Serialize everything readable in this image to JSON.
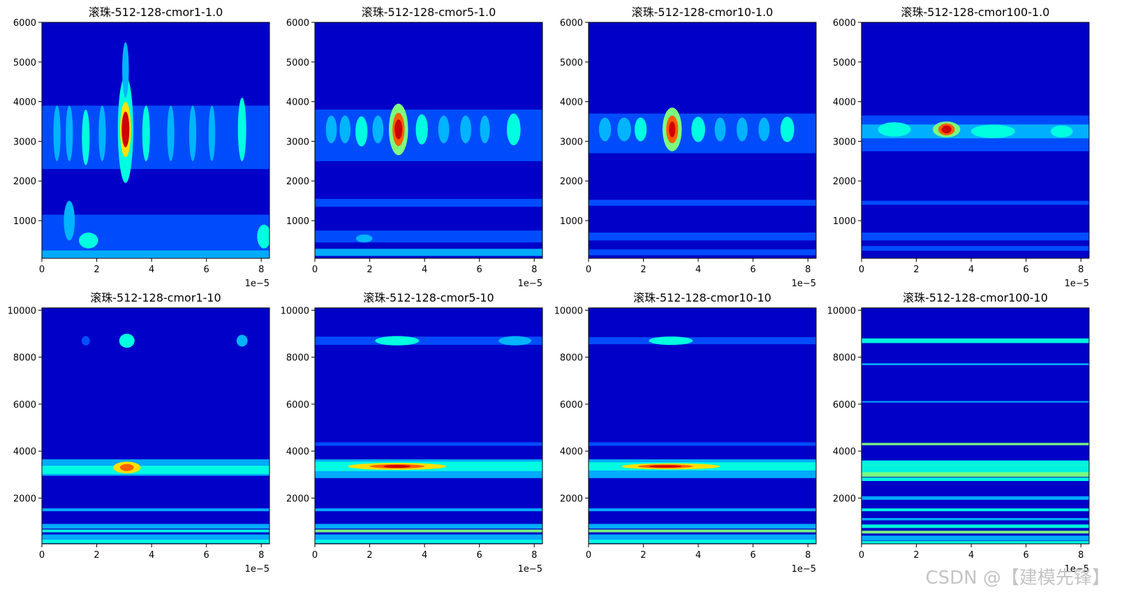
{
  "palette": {
    "background": "#0000c8",
    "levels": [
      "#0000c8",
      "#0050ff",
      "#00b4ff",
      "#00ffe0",
      "#7dff7d",
      "#ffe000",
      "#ff6000",
      "#d00000"
    ]
  },
  "watermark": "CSDN @【建模先锋】",
  "chart_data": [
    {
      "type": "heatmap",
      "title": "滚珠-512-128-cmor1-1.0",
      "x_ticks": [
        "0",
        "2",
        "4",
        "6",
        "8"
      ],
      "x_range": [
        0,
        8.3
      ],
      "x_offset_text": "1e−5",
      "y_ticks": [
        "1000",
        "2000",
        "3000",
        "4000",
        "5000",
        "6000"
      ],
      "y_range": [
        50,
        6000
      ],
      "blobs": [
        {
          "x": 3.05,
          "y": 3300,
          "rx": 0.28,
          "ry": 1350,
          "level": 3
        },
        {
          "x": 3.05,
          "y": 3300,
          "rx": 0.2,
          "ry": 700,
          "level": 5
        },
        {
          "x": 3.05,
          "y": 3300,
          "rx": 0.14,
          "ry": 450,
          "level": 7
        },
        {
          "x": 3.05,
          "y": 4800,
          "rx": 0.12,
          "ry": 700,
          "level": 2
        },
        {
          "x": 0.55,
          "y": 3200,
          "rx": 0.13,
          "ry": 700,
          "level": 2
        },
        {
          "x": 1.0,
          "y": 3200,
          "rx": 0.13,
          "ry": 700,
          "level": 2
        },
        {
          "x": 1.6,
          "y": 3100,
          "rx": 0.14,
          "ry": 700,
          "level": 3
        },
        {
          "x": 2.2,
          "y": 3200,
          "rx": 0.13,
          "ry": 700,
          "level": 2
        },
        {
          "x": 3.8,
          "y": 3200,
          "rx": 0.14,
          "ry": 700,
          "level": 3
        },
        {
          "x": 4.7,
          "y": 3200,
          "rx": 0.13,
          "ry": 700,
          "level": 2
        },
        {
          "x": 5.5,
          "y": 3200,
          "rx": 0.13,
          "ry": 700,
          "level": 2
        },
        {
          "x": 6.2,
          "y": 3200,
          "rx": 0.12,
          "ry": 700,
          "level": 2
        },
        {
          "x": 7.3,
          "y": 3300,
          "rx": 0.15,
          "ry": 800,
          "level": 3
        },
        {
          "x": 1.7,
          "y": 500,
          "rx": 0.35,
          "ry": 200,
          "level": 3
        },
        {
          "x": 8.1,
          "y": 600,
          "rx": 0.25,
          "ry": 300,
          "level": 3
        },
        {
          "x": 1.0,
          "y": 1000,
          "rx": 0.2,
          "ry": 500,
          "level": 2
        }
      ],
      "bands": [
        {
          "y": 3100,
          "h": 1600,
          "level": 1
        },
        {
          "y": 700,
          "h": 900,
          "level": 1
        },
        {
          "y": 150,
          "h": 200,
          "level": 2
        }
      ]
    },
    {
      "type": "heatmap",
      "title": "滚珠-512-128-cmor5-1.0",
      "x_ticks": [
        "0",
        "2",
        "4",
        "6",
        "8"
      ],
      "x_range": [
        0,
        8.3
      ],
      "x_offset_text": "1e−5",
      "y_ticks": [
        "1000",
        "2000",
        "3000",
        "4000",
        "5000",
        "6000"
      ],
      "y_range": [
        50,
        6000
      ],
      "blobs": [
        {
          "x": 3.05,
          "y": 3300,
          "rx": 0.35,
          "ry": 650,
          "level": 4
        },
        {
          "x": 3.05,
          "y": 3300,
          "rx": 0.22,
          "ry": 420,
          "level": 6
        },
        {
          "x": 3.05,
          "y": 3300,
          "rx": 0.14,
          "ry": 250,
          "level": 7
        },
        {
          "x": 0.6,
          "y": 3300,
          "rx": 0.2,
          "ry": 350,
          "level": 2
        },
        {
          "x": 1.1,
          "y": 3300,
          "rx": 0.2,
          "ry": 350,
          "level": 2
        },
        {
          "x": 1.7,
          "y": 3250,
          "rx": 0.22,
          "ry": 380,
          "level": 3
        },
        {
          "x": 2.3,
          "y": 3300,
          "rx": 0.2,
          "ry": 350,
          "level": 2
        },
        {
          "x": 3.9,
          "y": 3300,
          "rx": 0.22,
          "ry": 380,
          "level": 3
        },
        {
          "x": 4.7,
          "y": 3300,
          "rx": 0.2,
          "ry": 350,
          "level": 2
        },
        {
          "x": 5.5,
          "y": 3300,
          "rx": 0.2,
          "ry": 350,
          "level": 2
        },
        {
          "x": 6.2,
          "y": 3300,
          "rx": 0.18,
          "ry": 350,
          "level": 2
        },
        {
          "x": 7.25,
          "y": 3300,
          "rx": 0.25,
          "ry": 400,
          "level": 3
        },
        {
          "x": 1.8,
          "y": 550,
          "rx": 0.3,
          "ry": 100,
          "level": 2
        }
      ],
      "bands": [
        {
          "y": 3150,
          "h": 1300,
          "level": 1
        },
        {
          "y": 1450,
          "h": 200,
          "level": 1
        },
        {
          "y": 600,
          "h": 300,
          "level": 1
        },
        {
          "y": 200,
          "h": 180,
          "level": 2
        }
      ]
    },
    {
      "type": "heatmap",
      "title": "滚珠-512-128-cmor10-1.0",
      "x_ticks": [
        "0",
        "2",
        "4",
        "6",
        "8"
      ],
      "x_range": [
        0,
        8.3
      ],
      "x_offset_text": "1e−5",
      "y_ticks": [
        "1000",
        "2000",
        "3000",
        "4000",
        "5000",
        "6000"
      ],
      "y_range": [
        50,
        6000
      ],
      "blobs": [
        {
          "x": 3.05,
          "y": 3300,
          "rx": 0.35,
          "ry": 550,
          "level": 4
        },
        {
          "x": 3.05,
          "y": 3300,
          "rx": 0.22,
          "ry": 350,
          "level": 6
        },
        {
          "x": 3.05,
          "y": 3300,
          "rx": 0.12,
          "ry": 200,
          "level": 7
        },
        {
          "x": 0.6,
          "y": 3300,
          "rx": 0.22,
          "ry": 300,
          "level": 2
        },
        {
          "x": 1.3,
          "y": 3300,
          "rx": 0.25,
          "ry": 300,
          "level": 2
        },
        {
          "x": 1.9,
          "y": 3300,
          "rx": 0.22,
          "ry": 300,
          "level": 3
        },
        {
          "x": 4.0,
          "y": 3300,
          "rx": 0.25,
          "ry": 320,
          "level": 3
        },
        {
          "x": 4.8,
          "y": 3300,
          "rx": 0.2,
          "ry": 300,
          "level": 2
        },
        {
          "x": 5.6,
          "y": 3300,
          "rx": 0.2,
          "ry": 300,
          "level": 2
        },
        {
          "x": 6.4,
          "y": 3300,
          "rx": 0.2,
          "ry": 300,
          "level": 2
        },
        {
          "x": 7.25,
          "y": 3300,
          "rx": 0.25,
          "ry": 320,
          "level": 3
        }
      ],
      "bands": [
        {
          "y": 3200,
          "h": 1000,
          "level": 1
        },
        {
          "y": 1450,
          "h": 150,
          "level": 1
        },
        {
          "y": 600,
          "h": 200,
          "level": 1
        },
        {
          "y": 200,
          "h": 150,
          "level": 1
        }
      ]
    },
    {
      "type": "heatmap",
      "title": "滚珠-512-128-cmor100-1.0",
      "x_ticks": [
        "0",
        "2",
        "4",
        "6",
        "8"
      ],
      "x_range": [
        0,
        8.3
      ],
      "x_offset_text": "1e−5",
      "y_ticks": [
        "1000",
        "2000",
        "3000",
        "4000",
        "5000",
        "6000"
      ],
      "y_range": [
        50,
        6000
      ],
      "blobs": [
        {
          "x": 3.1,
          "y": 3300,
          "rx": 0.5,
          "ry": 200,
          "level": 4
        },
        {
          "x": 3.1,
          "y": 3300,
          "rx": 0.3,
          "ry": 150,
          "level": 6
        },
        {
          "x": 3.1,
          "y": 3300,
          "rx": 0.18,
          "ry": 100,
          "level": 7
        },
        {
          "x": 1.2,
          "y": 3300,
          "rx": 0.6,
          "ry": 180,
          "level": 3
        },
        {
          "x": 4.8,
          "y": 3250,
          "rx": 0.8,
          "ry": 170,
          "level": 3
        },
        {
          "x": 7.3,
          "y": 3250,
          "rx": 0.4,
          "ry": 150,
          "level": 3
        }
      ],
      "bands": [
        {
          "y": 3200,
          "h": 900,
          "level": 1
        },
        {
          "y": 3250,
          "h": 350,
          "level": 2
        },
        {
          "y": 1450,
          "h": 100,
          "level": 1
        },
        {
          "y": 600,
          "h": 200,
          "level": 1
        },
        {
          "y": 300,
          "h": 120,
          "level": 1
        }
      ]
    },
    {
      "type": "heatmap",
      "title": "滚珠-512-128-cmor1-10",
      "x_ticks": [
        "0",
        "2",
        "4",
        "6",
        "8"
      ],
      "x_range": [
        0,
        8.3
      ],
      "x_offset_text": "1e−5",
      "y_ticks": [
        "2000",
        "4000",
        "6000",
        "8000",
        "10000"
      ],
      "y_range": [
        50,
        10100
      ],
      "blobs": [
        {
          "x": 3.1,
          "y": 3300,
          "rx": 0.5,
          "ry": 250,
          "level": 5
        },
        {
          "x": 3.1,
          "y": 3300,
          "rx": 0.25,
          "ry": 150,
          "level": 6
        },
        {
          "x": 3.1,
          "y": 8700,
          "rx": 0.28,
          "ry": 300,
          "level": 3
        },
        {
          "x": 7.3,
          "y": 8700,
          "rx": 0.2,
          "ry": 250,
          "level": 2
        },
        {
          "x": 1.6,
          "y": 8700,
          "rx": 0.15,
          "ry": 200,
          "level": 1
        }
      ],
      "bands": [
        {
          "y": 3300,
          "h": 700,
          "level": 2
        },
        {
          "y": 3200,
          "h": 350,
          "level": 3
        },
        {
          "y": 1500,
          "h": 120,
          "level": 2
        },
        {
          "y": 800,
          "h": 200,
          "level": 2
        },
        {
          "y": 600,
          "h": 120,
          "level": 3
        },
        {
          "y": 300,
          "h": 300,
          "level": 2
        },
        {
          "y": 150,
          "h": 150,
          "level": 3
        }
      ]
    },
    {
      "type": "heatmap",
      "title": "滚珠-512-128-cmor5-10",
      "x_ticks": [
        "0",
        "2",
        "4",
        "6",
        "8"
      ],
      "x_range": [
        0,
        8.3
      ],
      "x_offset_text": "1e−5",
      "y_ticks": [
        "2000",
        "4000",
        "6000",
        "8000",
        "10000"
      ],
      "y_range": [
        50,
        10100
      ],
      "blobs": [
        {
          "x": 3.0,
          "y": 3350,
          "rx": 1.8,
          "ry": 150,
          "level": 5
        },
        {
          "x": 3.0,
          "y": 3350,
          "rx": 1.0,
          "ry": 90,
          "level": 6
        },
        {
          "x": 3.0,
          "y": 3350,
          "rx": 0.5,
          "ry": 60,
          "level": 7
        },
        {
          "x": 3.0,
          "y": 8700,
          "rx": 0.8,
          "ry": 200,
          "level": 3
        },
        {
          "x": 7.3,
          "y": 8700,
          "rx": 0.6,
          "ry": 200,
          "level": 2
        }
      ],
      "bands": [
        {
          "y": 3250,
          "h": 800,
          "level": 2
        },
        {
          "y": 3350,
          "h": 400,
          "level": 3
        },
        {
          "y": 8700,
          "h": 350,
          "level": 1
        },
        {
          "y": 4300,
          "h": 150,
          "level": 1
        },
        {
          "y": 1500,
          "h": 120,
          "level": 2
        },
        {
          "y": 800,
          "h": 200,
          "level": 2
        },
        {
          "y": 600,
          "h": 120,
          "level": 4
        },
        {
          "y": 300,
          "h": 300,
          "level": 2
        },
        {
          "y": 150,
          "h": 150,
          "level": 3
        }
      ]
    },
    {
      "type": "heatmap",
      "title": "滚珠-512-128-cmor10-10",
      "x_ticks": [
        "0",
        "2",
        "4",
        "6",
        "8"
      ],
      "x_range": [
        0,
        8.3
      ],
      "x_offset_text": "1e−5",
      "y_ticks": [
        "2000",
        "4000",
        "6000",
        "8000",
        "10000"
      ],
      "y_range": [
        50,
        10100
      ],
      "blobs": [
        {
          "x": 3.0,
          "y": 3350,
          "rx": 1.8,
          "ry": 130,
          "level": 5
        },
        {
          "x": 2.8,
          "y": 3350,
          "rx": 1.0,
          "ry": 80,
          "level": 6
        },
        {
          "x": 2.8,
          "y": 3350,
          "rx": 0.6,
          "ry": 50,
          "level": 7
        },
        {
          "x": 3.0,
          "y": 8700,
          "rx": 0.8,
          "ry": 180,
          "level": 3
        }
      ],
      "bands": [
        {
          "y": 3250,
          "h": 800,
          "level": 2
        },
        {
          "y": 3350,
          "h": 350,
          "level": 3
        },
        {
          "y": 8700,
          "h": 300,
          "level": 1
        },
        {
          "y": 4300,
          "h": 150,
          "level": 1
        },
        {
          "y": 1500,
          "h": 120,
          "level": 2
        },
        {
          "y": 800,
          "h": 200,
          "level": 2
        },
        {
          "y": 600,
          "h": 120,
          "level": 4
        },
        {
          "y": 300,
          "h": 300,
          "level": 2
        },
        {
          "y": 150,
          "h": 150,
          "level": 3
        }
      ]
    },
    {
      "type": "heatmap",
      "title": "滚珠-512-128-cmor100-10",
      "x_ticks": [
        "0",
        "2",
        "4",
        "6",
        "8"
      ],
      "x_range": [
        0,
        8.3
      ],
      "x_offset_text": "1e−5",
      "y_ticks": [
        "2000",
        "4000",
        "6000",
        "8000",
        "10000"
      ],
      "y_range": [
        50,
        10100
      ],
      "blobs": [],
      "bands": [
        {
          "y": 3400,
          "h": 80,
          "level": 6
        },
        {
          "y": 3300,
          "h": 600,
          "level": 3
        },
        {
          "y": 3000,
          "h": 200,
          "level": 4
        },
        {
          "y": 2800,
          "h": 150,
          "level": 3
        },
        {
          "y": 4300,
          "h": 100,
          "level": 4
        },
        {
          "y": 8700,
          "h": 200,
          "level": 3
        },
        {
          "y": 7700,
          "h": 80,
          "level": 2
        },
        {
          "y": 6100,
          "h": 60,
          "level": 2
        },
        {
          "y": 2000,
          "h": 150,
          "level": 2
        },
        {
          "y": 1500,
          "h": 120,
          "level": 3
        },
        {
          "y": 1100,
          "h": 100,
          "level": 2
        },
        {
          "y": 800,
          "h": 150,
          "level": 3
        },
        {
          "y": 550,
          "h": 120,
          "level": 4
        },
        {
          "y": 300,
          "h": 200,
          "level": 2
        },
        {
          "y": 120,
          "h": 120,
          "level": 3
        }
      ]
    }
  ]
}
